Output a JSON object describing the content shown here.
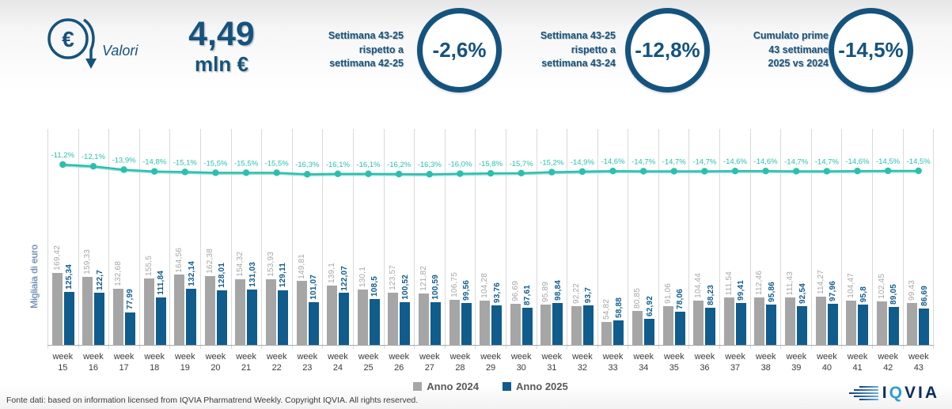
{
  "header": {
    "valori_label": "Valori",
    "currency_symbol": "€",
    "total_value": "4,49",
    "total_unit": "mln €",
    "kpis": [
      {
        "label_lines": [
          "Settimana 43-25",
          "rispetto a",
          "settimana 42-25"
        ],
        "value": "-2,6%"
      },
      {
        "label_lines": [
          "Settimana 43-25",
          "rispetto a",
          "settimana 43-24"
        ],
        "value": "-12,8%"
      },
      {
        "label_lines": [
          "Cumulato prime",
          "43 settimane",
          "2025 vs 2024"
        ],
        "value": "-14,5%"
      }
    ]
  },
  "chart_data": {
    "type": "bar",
    "title": "",
    "ylabel": "Migliaia di euro",
    "categories": [
      "week 15",
      "week 16",
      "week 17",
      "week 18",
      "week 19",
      "week 20",
      "week 21",
      "week 22",
      "week 23",
      "week 24",
      "week 25",
      "week 26",
      "week 27",
      "week 28",
      "week 29",
      "week 30",
      "week 31",
      "week 32",
      "week 33",
      "week 34",
      "week 35",
      "week 36",
      "week 37",
      "week 38",
      "week 39",
      "week 40",
      "week 41",
      "week 42",
      "week 43"
    ],
    "series": [
      {
        "name": "Anno 2024",
        "color": "#a6a6a6",
        "values": [
          169.42,
          159.33,
          132.68,
          155.5,
          164.56,
          162.38,
          154.32,
          153.93,
          149.81,
          139.1,
          130.1,
          123.57,
          121.82,
          106.75,
          104.28,
          96.69,
          95.89,
          92.22,
          54.82,
          80.85,
          91.06,
          104.44,
          111.54,
          112.46,
          111.43,
          114.27,
          104.47,
          102.45,
          99.43
        ]
      },
      {
        "name": "Anno 2025",
        "color": "#0f5c8d",
        "values": [
          125.34,
          122.7,
          77.99,
          111.84,
          132.14,
          128.01,
          131.03,
          129.11,
          101.07,
          122.07,
          108.5,
          100.52,
          100.59,
          99.56,
          93.76,
          87.61,
          98.84,
          93.7,
          58.88,
          62.92,
          78.06,
          88.23,
          99.41,
          95.86,
          92.54,
          97.96,
          95.8,
          89.05,
          86.69
        ]
      }
    ],
    "line_overlay": {
      "color": "#2bbfae",
      "unit": "%",
      "values": [
        -11.2,
        -12.1,
        -13.9,
        -14.8,
        -15.1,
        -15.5,
        -15.5,
        -15.5,
        -16.3,
        -16.1,
        -16.1,
        -16.2,
        -16.3,
        -16.0,
        -15.8,
        -15.7,
        -15.2,
        -14.9,
        -14.6,
        -14.7,
        -14.7,
        -14.7,
        -14.6,
        -14.6,
        -14.7,
        -14.7,
        -14.6,
        -14.5,
        -14.5
      ]
    },
    "legend_position": "bottom",
    "grid": "vertical"
  },
  "footer": {
    "source": "Fonte dati: based on information licensed from IQVIA Pharmatrend Weekly. Copyright IQVIA. All rights reserved.",
    "logo_parts": {
      "i": "I",
      "q": "Q",
      "via": "VIA"
    }
  },
  "colors": {
    "navy": "#15537e",
    "grid": "#d9d9d9",
    "axis": "#ababab",
    "legend_text": "#595959"
  }
}
